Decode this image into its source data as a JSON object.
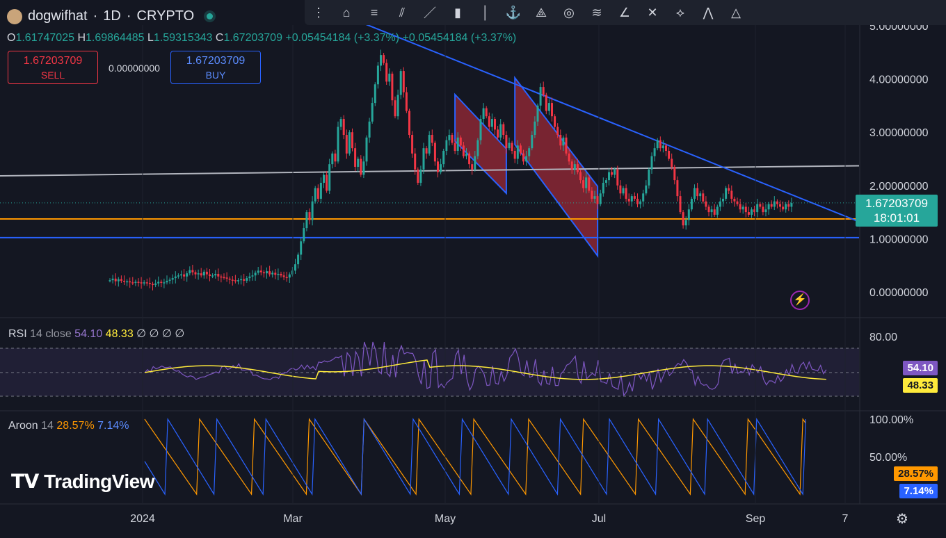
{
  "header": {
    "symbol": "dogwifhat",
    "interval": "1D",
    "market": "CRYPTO",
    "sep": "·",
    "o_label": "O",
    "o": "1.61747025",
    "h_label": "H",
    "h": "1.69864485",
    "l_label": "L",
    "l": "1.59315343",
    "c_label": "C",
    "c": "1.67203709",
    "change": "+0.05454184 (+3.37%)",
    "change2": "+0.05454184 (+3.37%)"
  },
  "trade": {
    "sell_price": "1.67203709",
    "sell_label": "SELL",
    "buy_price": "1.67203709",
    "buy_label": "BUY",
    "spread": "0.00000000"
  },
  "toolbar": [
    "crosshair-tool",
    "long-position-tool",
    "horizontal-lines-tool",
    "parallel-channel-tool",
    "trend-line-tool",
    "candles-tool",
    "vertical-line-tool",
    "anchor-tool",
    "pitchfork-tool",
    "fib-circle-tool",
    "fib-fan-tool",
    "trend-angle-tool",
    "cross-line-tool",
    "xabcd-tool",
    "head-shoulders-tool",
    "triangle-tool"
  ],
  "price_axis": {
    "ticks": [
      "5.00000000",
      "4.00000000",
      "3.00000000",
      "2.00000000",
      "1.00000000",
      "0.00000000"
    ],
    "current_price": "1.67203709",
    "countdown": "18:01:01"
  },
  "rsi": {
    "label": "RSI",
    "params": "14 close",
    "value": "54.10",
    "ma": "48.33",
    "extra": "∅ ∅ ∅ ∅",
    "axis_top": "80.00",
    "rsi_color": "#7e57c2",
    "ma_color": "#ffeb3b"
  },
  "aroon": {
    "label": "Aroon",
    "params": "14",
    "up": "28.57%",
    "down": "7.14%",
    "axis_top": "100.00%",
    "axis_mid": "50.00%",
    "up_color": "#ff9800",
    "down_color": "#2962ff"
  },
  "x_axis": {
    "ticks": [
      "2024",
      "Mar",
      "May",
      "Jul",
      "Sep",
      "7"
    ]
  },
  "branding": "TradingView",
  "chart_data": {
    "type": "candlestick",
    "title": "dogwifhat · 1D · CRYPTO",
    "ylim": [
      0,
      5
    ],
    "start": "2023-12-20",
    "closes": [
      0.22,
      0.25,
      0.2,
      0.24,
      0.21,
      0.19,
      0.2,
      0.18,
      0.17,
      0.19,
      0.18,
      0.16,
      0.18,
      0.17,
      0.15,
      0.13,
      0.16,
      0.19,
      0.17,
      0.18,
      0.21,
      0.23,
      0.26,
      0.29,
      0.31,
      0.33,
      0.29,
      0.35,
      0.41,
      0.37,
      0.33,
      0.35,
      0.31,
      0.38,
      0.33,
      0.3,
      0.31,
      0.34,
      0.29,
      0.28,
      0.27,
      0.25,
      0.23,
      0.22,
      0.2,
      0.22,
      0.24,
      0.21,
      0.26,
      0.29,
      0.31,
      0.36,
      0.4,
      0.37,
      0.35,
      0.39,
      0.33,
      0.36,
      0.32,
      0.34,
      0.31,
      0.28,
      0.27,
      0.33,
      0.4,
      0.52,
      0.7,
      0.95,
      1.2,
      1.5,
      1.35,
      1.7,
      1.95,
      1.75,
      2.05,
      2.2,
      1.9,
      2.4,
      2.6,
      2.45,
      3.1,
      3.25,
      2.95,
      2.6,
      3.0,
      2.7,
      2.35,
      2.5,
      2.2,
      2.45,
      2.9,
      3.2,
      3.55,
      3.9,
      4.25,
      4.45,
      4.3,
      3.95,
      4.1,
      3.6,
      3.3,
      3.7,
      4.15,
      3.75,
      3.4,
      2.95,
      2.6,
      2.3,
      2.05,
      2.3,
      2.7,
      2.6,
      2.95,
      2.8,
      2.45,
      2.25,
      2.4,
      2.65,
      2.85,
      2.95,
      2.8,
      2.65,
      2.9,
      2.75,
      2.55,
      2.6,
      2.4,
      2.3,
      2.55,
      2.85,
      3.25,
      3.45,
      3.3,
      3.1,
      3.25,
      3.05,
      2.9,
      3.15,
      2.95,
      2.7,
      2.8,
      2.65,
      2.5,
      2.75,
      2.6,
      2.45,
      2.55,
      2.7,
      2.95,
      3.2,
      3.5,
      3.85,
      3.7,
      3.4,
      3.55,
      3.3,
      3.1,
      2.95,
      2.75,
      2.9,
      2.6,
      2.45,
      2.3,
      2.4,
      2.25,
      2.1,
      1.95,
      2.15,
      1.9,
      1.75,
      1.8,
      1.65,
      1.85,
      2.05,
      2.1,
      2.25,
      2.2,
      2.3,
      2.0,
      1.85,
      1.95,
      1.75,
      1.7,
      1.8,
      1.75,
      1.65,
      1.7,
      1.85,
      2.0,
      2.3,
      2.55,
      2.7,
      2.85,
      2.7,
      2.75,
      2.65,
      2.5,
      2.35,
      2.1,
      1.8,
      1.5,
      1.25,
      1.35,
      1.55,
      1.75,
      1.95,
      1.8,
      1.85,
      1.7,
      1.6,
      1.5,
      1.55,
      1.45,
      1.6,
      1.7,
      1.75,
      1.95,
      1.9,
      1.75,
      1.7,
      1.65,
      1.55,
      1.6,
      1.5,
      1.45,
      1.55,
      1.5,
      1.65,
      1.6,
      1.5,
      1.55,
      1.65,
      1.6,
      1.7,
      1.65,
      1.6,
      1.55,
      1.65,
      1.6,
      1.67
    ],
    "horizontal_lines": [
      {
        "price": 1.37,
        "color": "#ff9800"
      },
      {
        "price": 1.02,
        "color": "#2962ff"
      }
    ],
    "support_line": {
      "from": [
        0,
        2.18
      ],
      "to": [
        262,
        2.37
      ],
      "color": "#b2b5be"
    },
    "trendline": {
      "from": [
        92,
        5.03
      ],
      "to": [
        270,
        1.32
      ],
      "color": "#2962ff"
    },
    "channels": [
      {
        "color": "#f7525f"
      },
      {
        "color": "#f7525f"
      }
    ],
    "rsi_series": [],
    "aroon_up": [],
    "aroon_down": []
  }
}
